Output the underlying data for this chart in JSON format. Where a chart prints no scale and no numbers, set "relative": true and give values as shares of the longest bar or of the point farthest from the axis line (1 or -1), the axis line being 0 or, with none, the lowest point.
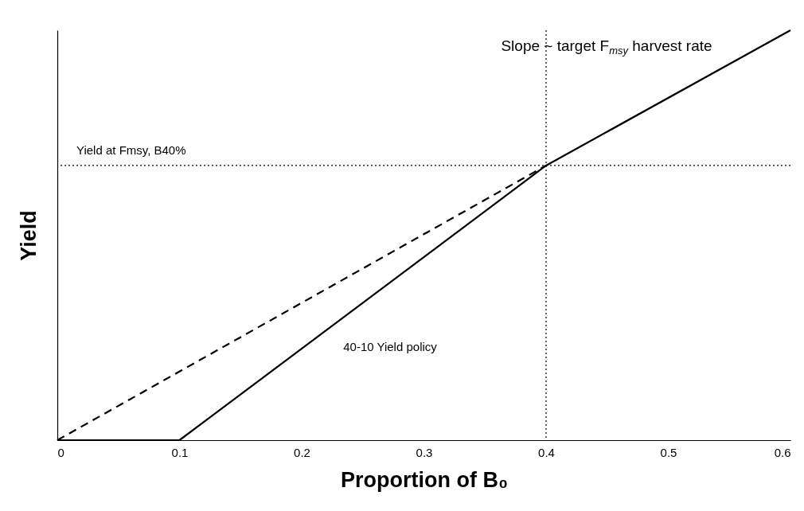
{
  "chart_data": {
    "type": "line",
    "relative": true,
    "xlabel": "Proportion of B₀",
    "ylabel": "Yield",
    "xlim": [
      0,
      0.6
    ],
    "xticks": [
      0,
      0.1,
      0.2,
      0.3,
      0.4,
      0.5,
      0.6
    ],
    "grid": false,
    "marker": "none",
    "series": [
      {
        "color": "#000000",
        "line_style": "solid",
        "x": [
          0,
          0.1,
          0.4,
          0.6
        ],
        "values": [
          0,
          0,
          0.67,
          1
        ]
      },
      {
        "color": "#000000",
        "line_style": "dashed",
        "x": [
          0,
          0.4
        ],
        "values": [
          0,
          0.67
        ]
      }
    ],
    "ref_lines": [
      {
        "axis": "x",
        "value": 0.4,
        "color": "#000000",
        "line_style": "dotted"
      },
      {
        "axis": "y",
        "value": 0.67,
        "color": "#000000",
        "line_style": "dotted"
      }
    ],
    "annotations": [
      "Slope ~ target F$_{msy}$ harvest rate",
      "Yield at Fmsy, B40%",
      "40-10 Yield policy"
    ]
  }
}
